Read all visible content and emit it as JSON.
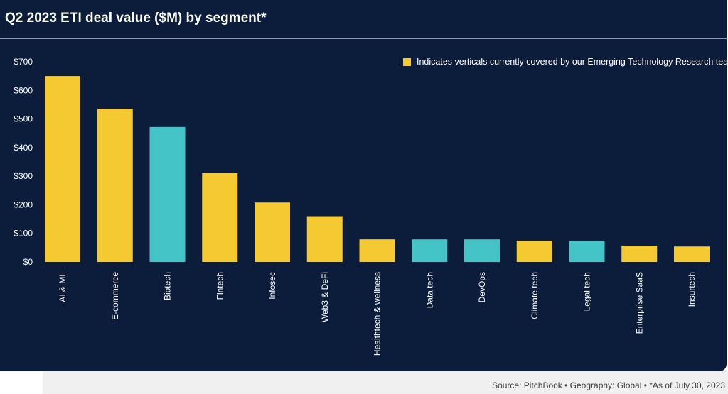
{
  "chart_data": {
    "type": "bar",
    "title": "Q2 2023 ETI deal value ($M) by segment*",
    "categories": [
      "AI & ML",
      "E-commerce",
      "Biotech",
      "Fintech",
      "Infosec",
      "Web3 & DeFi",
      "Healthtech & wellness",
      "Data tech",
      "DevOps",
      "Climate tech",
      "Legal tech",
      "Enterprise SaaS",
      "Insurtech"
    ],
    "values": [
      650,
      536,
      472,
      311,
      208,
      160,
      79,
      79,
      79,
      74,
      74,
      57,
      54
    ],
    "covered": [
      true,
      true,
      false,
      true,
      true,
      true,
      true,
      false,
      false,
      true,
      false,
      true,
      true
    ],
    "ylim": [
      0,
      700
    ],
    "yticks": [
      0,
      100,
      200,
      300,
      400,
      500,
      600,
      700
    ],
    "ytick_labels": [
      "$0",
      "$100",
      "$200",
      "$300",
      "$400",
      "$500",
      "$600",
      "$700"
    ],
    "legend": {
      "position": "top-right",
      "entries": [
        {
          "label": "Indicates verticals currently covered by our Emerging Technology Research team",
          "color": "#f4c932"
        }
      ]
    },
    "colors": {
      "covered": "#f4c932",
      "other": "#45c4c8",
      "background": "#0b1d3a"
    },
    "grid": false
  },
  "footer": {
    "source": "Source: PitchBook  •  Geography: Global  •  *As of July 30, 2023"
  }
}
